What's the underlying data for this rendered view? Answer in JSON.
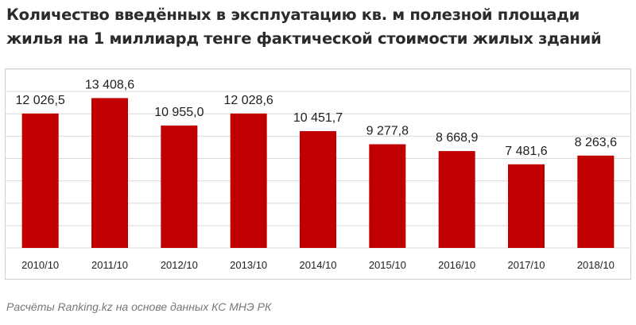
{
  "title_line1": "Количество введённых в эксплуатацию кв.  м полезной площади",
  "title_line2": "жилья на 1 миллиард тенге фактической стоимости жилых зданий",
  "source": "Расчёты Ranking.kz на основе данных  КС МНЭ РК",
  "colors": {
    "bar": "#c00000",
    "grid": "#d9d9d9",
    "label": "#1f1f1f"
  },
  "chart_data": {
    "type": "bar",
    "categories": [
      "2010/10",
      "2011/10",
      "2012/10",
      "2013/10",
      "2014/10",
      "2015/10",
      "2016/10",
      "2017/10",
      "2018/10"
    ],
    "values": [
      12026.5,
      13408.6,
      10955.0,
      12028.6,
      10451.7,
      9277.8,
      8668.9,
      7481.6,
      8263.6
    ],
    "value_labels": [
      "12 026,5",
      "13 408,6",
      "10 955,0",
      "12 028,6",
      "10 451,7",
      "9 277,8",
      "8 668,9",
      "7 481,6",
      "8 263,6"
    ],
    "ylim": [
      0,
      16000
    ],
    "grid": true,
    "legend": "none"
  }
}
